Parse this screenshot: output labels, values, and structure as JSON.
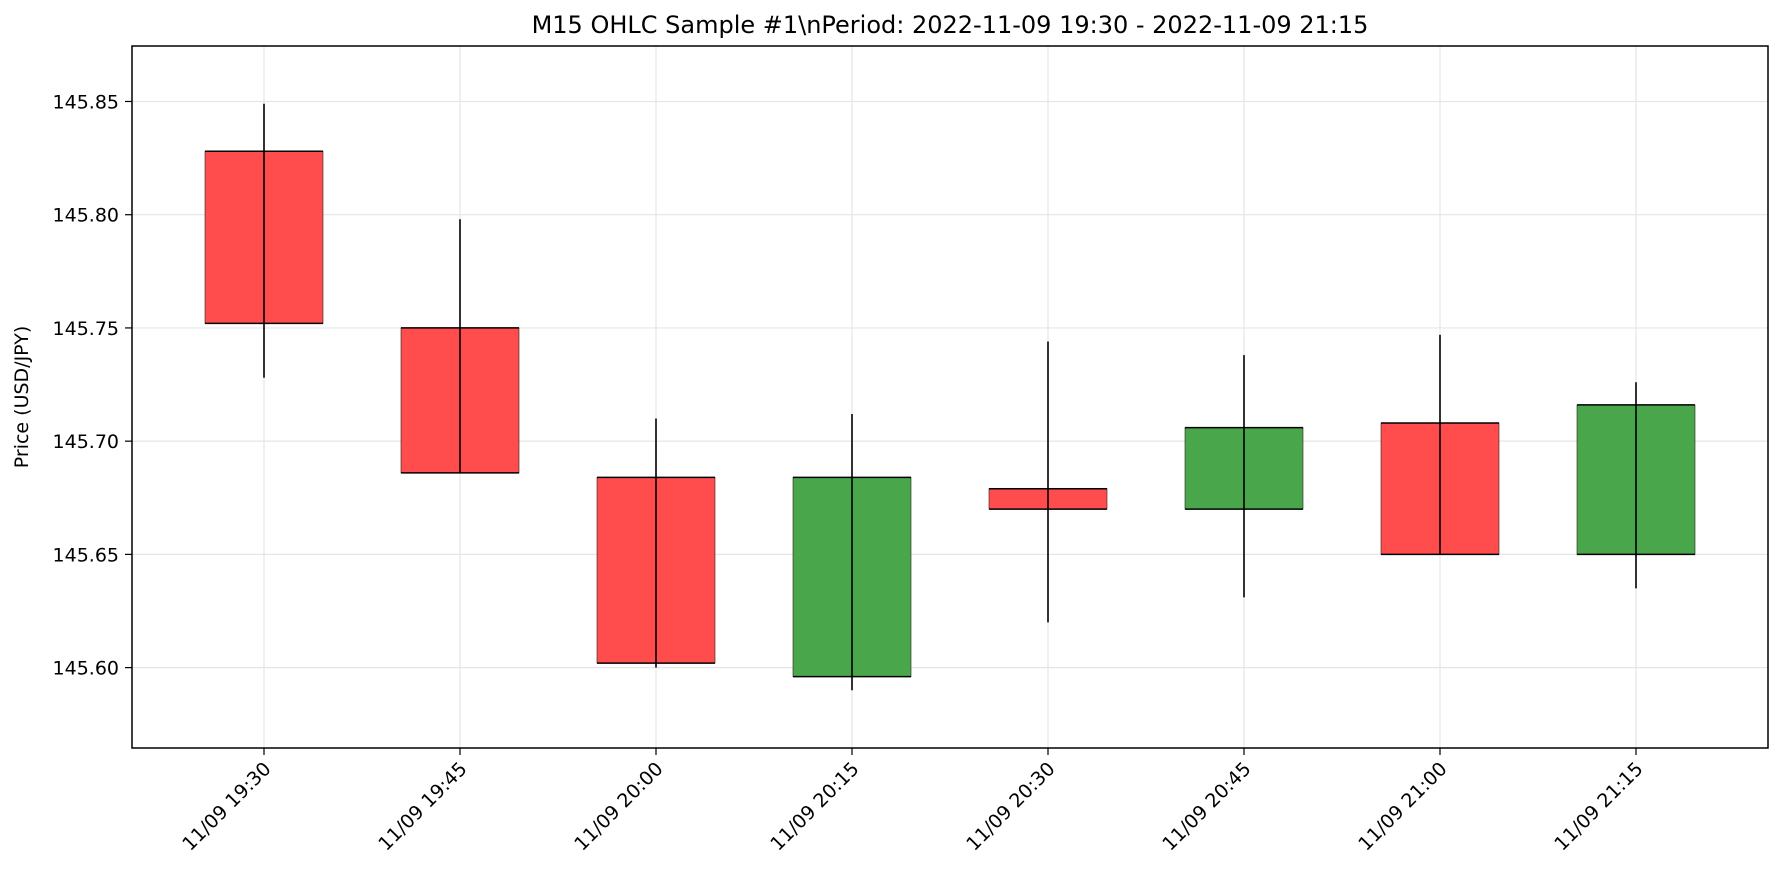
{
  "colors": {
    "background": "#ffffff",
    "grid": "#e6e6e6",
    "bearish": "#ff4d4d",
    "bullish": "#4aa64a",
    "edge": "#000000",
    "wick": "#000000"
  },
  "chart_data": {
    "type": "candlestick",
    "title": "M15 OHLC Sample #1\\nPeriod: 2022-11-09 19:30 - 2022-11-09 21:15",
    "xlabel": "",
    "ylabel": "Price (USD/JPY)",
    "ylim": [
      145.5645,
      145.8745
    ],
    "yticks": [
      "145.60",
      "145.65",
      "145.70",
      "145.75",
      "145.80",
      "145.85"
    ],
    "grid": true,
    "categories": [
      "11/09 19:30",
      "11/09 19:45",
      "11/09 20:00",
      "11/09 20:15",
      "11/09 20:30",
      "11/09 20:45",
      "11/09 21:00",
      "11/09 21:15"
    ],
    "ohlc": [
      {
        "open": 145.828,
        "high": 145.849,
        "low": 145.728,
        "close": 145.752
      },
      {
        "open": 145.75,
        "high": 145.798,
        "low": 145.686,
        "close": 145.686
      },
      {
        "open": 145.684,
        "high": 145.71,
        "low": 145.6,
        "close": 145.602
      },
      {
        "open": 145.596,
        "high": 145.712,
        "low": 145.59,
        "close": 145.684
      },
      {
        "open": 145.679,
        "high": 145.744,
        "low": 145.62,
        "close": 145.67
      },
      {
        "open": 145.67,
        "high": 145.738,
        "low": 145.631,
        "close": 145.706
      },
      {
        "open": 145.708,
        "high": 145.747,
        "low": 145.65,
        "close": 145.65
      },
      {
        "open": 145.65,
        "high": 145.726,
        "low": 145.635,
        "close": 145.716
      }
    ]
  }
}
